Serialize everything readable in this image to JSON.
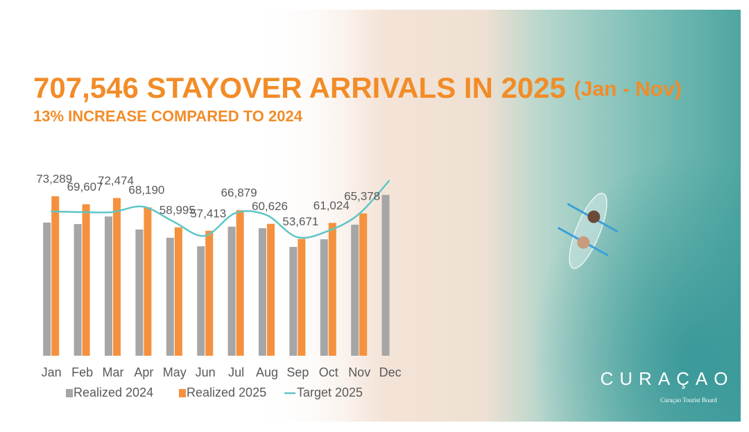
{
  "chart_data": {
    "type": "bar",
    "title": "707,546 STAYOVER ARRIVALS IN 2025",
    "title_note": "(Jan - Nov)",
    "subtitle": "13% INCREASE COMPARED TO 2024",
    "categories": [
      "Jan",
      "Feb",
      "Mar",
      "Apr",
      "May",
      "Jun",
      "Jul",
      "Aug",
      "Sep",
      "Oct",
      "Nov",
      "Dec"
    ],
    "series": [
      {
        "name": "Realized 2024",
        "type": "bar",
        "color": "#a6a6a6",
        "values": [
          61200,
          60500,
          64000,
          58000,
          54200,
          50300,
          59300,
          58600,
          50000,
          53500,
          60200,
          73900
        ]
      },
      {
        "name": "Realized 2025",
        "type": "bar",
        "color": "#f5913e",
        "values": [
          73289,
          69607,
          72474,
          68190,
          58995,
          57413,
          66879,
          60626,
          53671,
          61024,
          65378,
          null
        ],
        "value_labels": [
          "73,289",
          "69,607",
          "72,474",
          "68,190",
          "58,995",
          "57,413",
          "66,879",
          "60,626",
          "53,671",
          "61,024",
          "65,378",
          null
        ]
      },
      {
        "name": "Target 2025",
        "type": "line",
        "color": "#5ec6c6",
        "values": [
          66300,
          66000,
          66000,
          68500,
          61500,
          55100,
          65600,
          64700,
          54500,
          57300,
          65000,
          80600
        ]
      }
    ],
    "ylim": [
      0,
      85000
    ],
    "legend": "bottom",
    "logo": {
      "name": "CURAÇAO",
      "tagline": "Curaçao Tourist Board"
    }
  }
}
